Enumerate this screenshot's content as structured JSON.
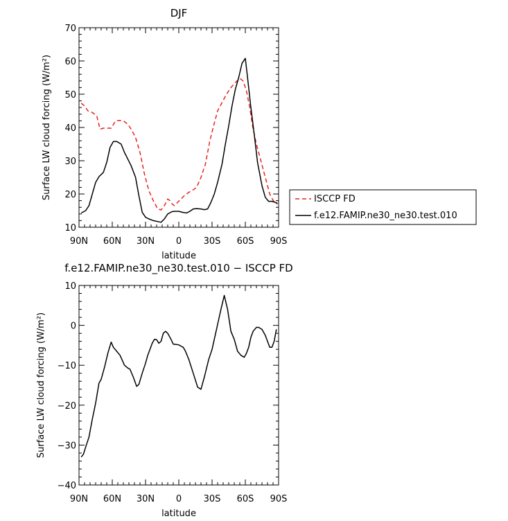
{
  "chart_data": [
    {
      "type": "line",
      "title": "DJF",
      "xlabel": "latitude",
      "ylabel": "Surface LW cloud forcing (W/m²)",
      "xlim": [
        90,
        -90
      ],
      "ylim": [
        10,
        70
      ],
      "x_tick_values": [
        90,
        60,
        30,
        0,
        -30,
        -60,
        -90
      ],
      "x_tick_labels": [
        "90N",
        "60N",
        "30N",
        "0",
        "30S",
        "60S",
        "90S"
      ],
      "y_tick_values": [
        10,
        20,
        30,
        40,
        50,
        60,
        70
      ],
      "y_tick_labels": [
        "10",
        "20",
        "30",
        "40",
        "50",
        "60",
        "70"
      ],
      "legend_position": "right",
      "series": [
        {
          "name": "ISCCP FD",
          "color": "#e8201f",
          "dash": "dashed",
          "x": [
            88,
            85,
            82,
            78,
            74,
            71,
            68,
            65,
            61,
            57,
            54,
            50,
            46,
            43,
            39,
            35,
            31,
            27,
            23,
            19,
            16,
            13,
            10,
            8,
            6,
            4,
            1,
            -2,
            -5,
            -9,
            -12,
            -16,
            -20,
            -24,
            -28,
            -31,
            -35,
            -39,
            -43,
            -47,
            -51,
            -55,
            -58,
            -61,
            -64,
            -67,
            -70,
            -74,
            -78,
            -82,
            -86,
            -89
          ],
          "values": [
            47.3,
            46.5,
            45.0,
            44.5,
            43.5,
            39.5,
            39.8,
            39.8,
            39.8,
            42.0,
            42.1,
            42.0,
            41.0,
            39.5,
            37.0,
            32.5,
            26.0,
            21.0,
            18.0,
            15.5,
            15.2,
            16.5,
            18.5,
            18.0,
            17.0,
            16.5,
            17.5,
            18.5,
            19.5,
            20.5,
            21.0,
            22.0,
            25.0,
            29.0,
            36.0,
            40.0,
            45.0,
            47.5,
            50.0,
            52.0,
            53.5,
            54.8,
            54.0,
            51.0,
            46.0,
            39.5,
            35.0,
            30.0,
            25.0,
            20.0,
            17.5,
            17.0
          ]
        },
        {
          "name": "f.e12.FAMIP.ne30_ne30.test.010",
          "color": "#000000",
          "dash": "solid",
          "x": [
            88,
            84,
            81,
            78,
            75,
            72,
            68,
            65,
            62,
            59,
            56,
            52,
            49,
            46,
            43,
            39,
            36,
            33,
            30,
            27,
            23,
            19,
            16,
            13,
            10,
            6,
            3,
            0,
            -3,
            -7,
            -10,
            -13,
            -16,
            -20,
            -23,
            -26,
            -29,
            -32,
            -35,
            -39,
            -42,
            -45,
            -48,
            -51,
            -54,
            -57,
            -60,
            -62,
            -65,
            -68,
            -71,
            -75,
            -78,
            -81,
            -84,
            -87,
            -89
          ],
          "values": [
            14.3,
            15.0,
            16.5,
            20.0,
            23.5,
            25.2,
            26.5,
            29.5,
            34.0,
            35.8,
            35.8,
            35.0,
            32.5,
            30.5,
            28.5,
            25.0,
            19.5,
            14.5,
            13.0,
            12.5,
            12.0,
            11.7,
            11.5,
            12.5,
            14.0,
            14.7,
            14.8,
            14.8,
            14.5,
            14.3,
            14.8,
            15.5,
            15.6,
            15.5,
            15.3,
            15.5,
            17.5,
            20.0,
            23.5,
            29.0,
            35.0,
            40.5,
            46.5,
            51.5,
            55.0,
            59.3,
            60.8,
            55.0,
            46.0,
            38.0,
            29.5,
            22.5,
            19.0,
            17.8,
            17.8,
            17.5,
            17.2
          ]
        }
      ]
    },
    {
      "type": "line",
      "title": "f.e12.FAMIP.ne30_ne30.test.010 − ISCCP FD",
      "xlabel": "latitude",
      "ylabel": "Surface LW cloud forcing (W/m²)",
      "xlim": [
        90,
        -90
      ],
      "ylim": [
        -40,
        10
      ],
      "x_tick_values": [
        90,
        60,
        30,
        0,
        -30,
        -60,
        -90
      ],
      "x_tick_labels": [
        "90N",
        "60N",
        "30N",
        "0",
        "30S",
        "60S",
        "90S"
      ],
      "y_tick_values": [
        -40,
        -30,
        -20,
        -10,
        0,
        10
      ],
      "y_tick_labels": [
        "−40",
        "−30",
        "−20",
        "−10",
        "0",
        "10"
      ],
      "series": [
        {
          "color": "#000000",
          "dash": "solid",
          "x": [
            88,
            86,
            84,
            81,
            78,
            75,
            72,
            70,
            67,
            64,
            61,
            59,
            56,
            53,
            49,
            46,
            44,
            41,
            38,
            36,
            33,
            30,
            28,
            26,
            24,
            22,
            20,
            18,
            16,
            14,
            12,
            10,
            7,
            5,
            2,
            0,
            -2,
            -4,
            -6,
            -9,
            -13,
            -17,
            -20,
            -23,
            -27,
            -30,
            -32,
            -34,
            -36,
            -38,
            -41,
            -44,
            -47,
            -50,
            -53,
            -56,
            -59,
            -61,
            -63,
            -65,
            -67,
            -70,
            -72,
            -75,
            -78,
            -80,
            -82,
            -84,
            -86,
            -88
          ],
          "values": [
            -33.0,
            -32.3,
            -30.5,
            -28.0,
            -23.5,
            -19.5,
            -14.5,
            -13.5,
            -10.5,
            -7.0,
            -4.2,
            -5.5,
            -6.5,
            -7.5,
            -10.0,
            -10.7,
            -11.0,
            -13.0,
            -15.3,
            -14.8,
            -12.0,
            -9.5,
            -7.5,
            -6.0,
            -4.5,
            -3.5,
            -3.6,
            -4.5,
            -4.0,
            -2.0,
            -1.5,
            -2.0,
            -3.5,
            -4.7,
            -4.8,
            -4.9,
            -5.2,
            -5.5,
            -6.5,
            -8.5,
            -12.0,
            -15.5,
            -16.0,
            -13.0,
            -8.5,
            -6.0,
            -3.5,
            -1.0,
            1.5,
            4.0,
            7.5,
            4.0,
            -1.5,
            -3.5,
            -6.5,
            -7.5,
            -8.0,
            -7.0,
            -5.5,
            -3.0,
            -1.5,
            -0.5,
            -0.5,
            -1.0,
            -2.5,
            -4.0,
            -5.5,
            -5.5,
            -4.0,
            -1.0
          ]
        }
      ]
    }
  ]
}
